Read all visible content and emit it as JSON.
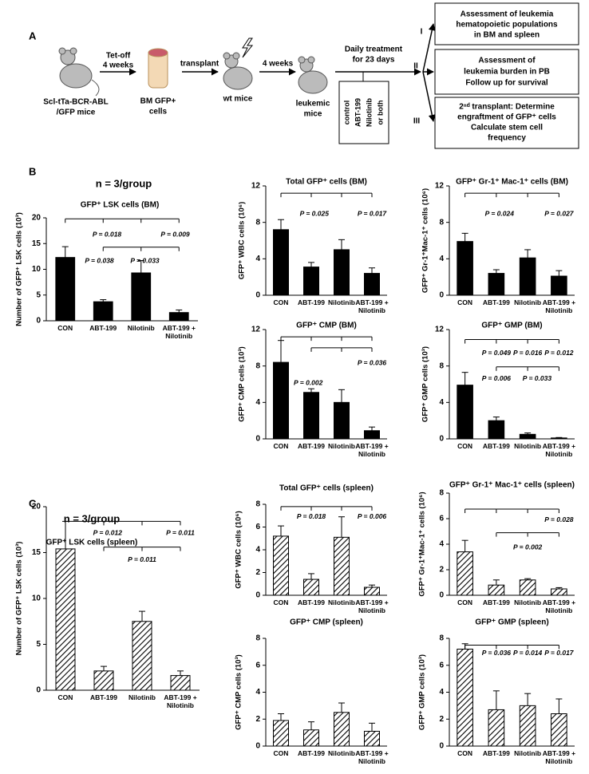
{
  "panel_a": {
    "label": "A",
    "donor": [
      "Scl-tTa-BCR-ABL",
      "/GFP mice"
    ],
    "tet_off": [
      "Tet-off",
      "4 weeks"
    ],
    "bone": [
      "BM GFP+",
      "cells"
    ],
    "transplant": "transplant",
    "wt": "wt mice",
    "wait": "4 weeks",
    "leukemic": [
      "leukemic",
      "mice"
    ],
    "treatment": [
      "Daily treatment",
      "for 23 days"
    ],
    "arms": [
      "control",
      "ABT-199",
      "Nilotinib",
      "or both"
    ],
    "routes": [
      "I",
      "II",
      "III"
    ],
    "boxes": [
      [
        "Assessment of  leukemia",
        "hematopoietic populations",
        "in BM and spleen"
      ],
      [
        "Assessment of",
        "leukemia burden in PB",
        "Follow up for survival"
      ],
      [
        "2ⁿᵈ transplant: Determine",
        "engraftment of GFP⁺ cells",
        "Calculate stem cell",
        "frequency"
      ]
    ]
  },
  "panel_labels": [
    "B",
    "C"
  ],
  "chart_data": [
    {
      "type": "bar",
      "note": "n = 3/group",
      "title": "GFP⁺ LSK cells (BM)",
      "ylabel": "Number of GFP⁺ LSK cells (10³)",
      "categories": [
        "CON",
        "ABT-199",
        "Nilotinib",
        "ABT-199 + Nilotinib"
      ],
      "values": [
        12.3,
        3.7,
        9.3,
        1.6
      ],
      "errors": [
        2.1,
        0.4,
        2.4,
        0.5
      ],
      "ylim": [
        0,
        20
      ],
      "yticks": [
        0,
        5,
        10,
        15,
        20
      ],
      "color": "#000000",
      "hatch": false,
      "annotations": [
        "P = 0.018",
        "P = 0.009",
        "P = 0.038",
        "P = 0.033"
      ]
    },
    {
      "type": "bar",
      "title": "Total GFP⁺ cells (BM)",
      "ylabel": "GFP⁺ WBC cells (10⁶)",
      "categories": [
        "CON",
        "ABT-199",
        "Nilotinib",
        "ABT-199 + Nilotinib"
      ],
      "values": [
        7.2,
        3.1,
        5.0,
        2.4
      ],
      "errors": [
        1.1,
        0.5,
        1.1,
        0.6
      ],
      "ylim": [
        0,
        12
      ],
      "yticks": [
        0,
        4,
        8,
        12
      ],
      "color": "#000000",
      "hatch": false,
      "annotations": [
        "P = 0.025",
        "P = 0.017"
      ]
    },
    {
      "type": "bar",
      "title": "GFP⁺ Gr-1⁺ Mac-1⁺ cells (BM)",
      "ylabel": "GFP⁺ Gr-1⁺Mac-1⁺ cells (10⁶)",
      "categories": [
        "CON",
        "ABT-199",
        "Nilotinib",
        "ABT-199 + Nilotinib"
      ],
      "values": [
        5.9,
        2.4,
        4.1,
        2.1
      ],
      "errors": [
        0.9,
        0.4,
        0.9,
        0.6
      ],
      "ylim": [
        0,
        12
      ],
      "yticks": [
        0,
        4,
        8,
        12
      ],
      "color": "#000000",
      "hatch": false,
      "annotations": [
        "P = 0.024",
        "P = 0.027"
      ]
    },
    {
      "type": "bar",
      "title": "GFP⁺ CMP (BM)",
      "ylabel": "GFP⁺ CMP cells (10³)",
      "categories": [
        "CON",
        "ABT-199",
        "Nilotinib",
        "ABT-199 + Nilotinib"
      ],
      "values": [
        8.4,
        5.1,
        4.0,
        0.9
      ],
      "errors": [
        2.4,
        0.4,
        1.4,
        0.4
      ],
      "ylim": [
        0,
        12
      ],
      "yticks": [
        0,
        4,
        8,
        12
      ],
      "color": "#000000",
      "hatch": false,
      "annotations": [
        "P = 0.002",
        "P = 0.036"
      ]
    },
    {
      "type": "bar",
      "title": "GFP⁺ GMP (BM)",
      "ylabel": "GFP⁺ GMP cells (10³)",
      "categories": [
        "CON",
        "ABT-199",
        "Nilotinib",
        "ABT-199 + Nilotinib"
      ],
      "values": [
        5.9,
        2.0,
        0.5,
        0.1
      ],
      "errors": [
        1.4,
        0.4,
        0.15,
        0.05
      ],
      "ylim": [
        0,
        12
      ],
      "yticks": [
        0,
        4,
        8,
        12
      ],
      "color": "#000000",
      "hatch": false,
      "annotations": [
        "P = 0.049",
        "P = 0.016",
        "P = 0.012",
        "P = 0.006",
        "P = 0.033"
      ]
    },
    {
      "type": "bar",
      "note": "n = 3/group",
      "title": "GFP⁺ LSK cells (spleen)",
      "ylabel": "Number of GFP⁺ LSK cells (10³)",
      "categories": [
        "CON",
        "ABT-199",
        "Nilotinib",
        "ABT-199 + Nilotinib"
      ],
      "values": [
        15.4,
        2.1,
        7.5,
        1.6
      ],
      "errors": [
        3.0,
        0.5,
        1.1,
        0.5
      ],
      "ylim": [
        0,
        20
      ],
      "yticks": [
        0,
        5,
        10,
        15,
        20
      ],
      "color": "#000000",
      "hatch": true,
      "annotations": [
        "P = 0.012",
        "P = 0.011",
        "P = 0.011"
      ]
    },
    {
      "type": "bar",
      "title": "Total GFP⁺ cells (spleen)",
      "ylabel": "GFP⁺ WBC cells (10⁶)",
      "categories": [
        "CON",
        "ABT-199",
        "Nilotinib",
        "ABT-199 + Nilotinib"
      ],
      "values": [
        5.2,
        1.4,
        5.1,
        0.7
      ],
      "errors": [
        0.9,
        0.5,
        1.8,
        0.2
      ],
      "ylim": [
        0,
        8
      ],
      "yticks": [
        0,
        2,
        4,
        6,
        8
      ],
      "color": "#000000",
      "hatch": true,
      "annotations": [
        "P = 0.018",
        "P = 0.006"
      ]
    },
    {
      "type": "bar",
      "title": "GFP⁺ Gr-1⁺ Mac-1⁺ cells (spleen)",
      "ylabel": "GFP⁺ Gr-1⁺Mac-1⁺ cells (10⁶)",
      "categories": [
        "CON",
        "ABT-199",
        "Nilotinib",
        "ABT-199 + Nilotinib"
      ],
      "values": [
        3.4,
        0.8,
        1.2,
        0.5
      ],
      "errors": [
        0.9,
        0.4,
        0.1,
        0.1
      ],
      "ylim": [
        0,
        8
      ],
      "yticks": [
        0,
        2,
        4,
        6,
        8
      ],
      "color": "#000000",
      "hatch": true,
      "annotations": [
        "P = 0.028",
        "P = 0.002"
      ]
    },
    {
      "type": "bar",
      "title": "GFP⁺ CMP (spleen)",
      "ylabel": "GFP⁺ CMP cells (10³)",
      "categories": [
        "CON",
        "ABT-199",
        "Nilotinib",
        "ABT-199 + Nilotinib"
      ],
      "values": [
        1.9,
        1.2,
        2.5,
        1.1
      ],
      "errors": [
        0.5,
        0.6,
        0.7,
        0.6
      ],
      "ylim": [
        0,
        8
      ],
      "yticks": [
        0,
        2,
        4,
        6,
        8
      ],
      "color": "#000000",
      "hatch": true,
      "annotations": []
    },
    {
      "type": "bar",
      "title": "GFP⁺ GMP (spleen)",
      "ylabel": "GFP⁺ GMP cells (10³)",
      "categories": [
        "CON",
        "ABT-199",
        "Nilotinib",
        "ABT-199 + Nilotinib"
      ],
      "values": [
        7.2,
        2.7,
        3.0,
        2.4
      ],
      "errors": [
        0.4,
        1.4,
        0.9,
        1.1
      ],
      "ylim": [
        0,
        8
      ],
      "yticks": [
        0,
        2,
        4,
        6,
        8
      ],
      "color": "#000000",
      "hatch": true,
      "annotations": [
        "P = 0.036",
        "P = 0.014",
        "P = 0.017"
      ]
    }
  ]
}
